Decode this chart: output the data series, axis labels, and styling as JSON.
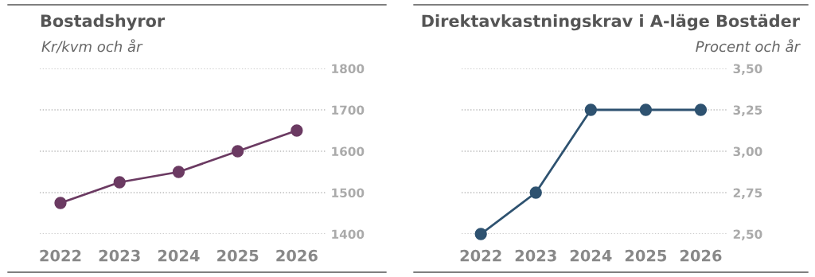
{
  "chart_data": [
    {
      "type": "line",
      "title": "Bostadshyror",
      "subtitle": "Kr/kvm och år",
      "categories": [
        "2022",
        "2023",
        "2024",
        "2025",
        "2026"
      ],
      "series": [
        {
          "color": "#6b3a62",
          "values": [
            1475,
            1525,
            1550,
            1600,
            1650
          ]
        }
      ],
      "ylim": [
        1400,
        1800
      ],
      "yticks": [
        1400,
        1500,
        1600,
        1700,
        1800
      ],
      "grid": "y",
      "marker": "circle",
      "line_style": "solid"
    },
    {
      "type": "line",
      "title": "Direktavkastningskrav i A-läge Bostäder",
      "subtitle": "Procent och år",
      "categories": [
        "2022",
        "2023",
        "2024",
        "2025",
        "2026"
      ],
      "series": [
        {
          "color": "#2e5270",
          "values": [
            2.5,
            2.75,
            3.25,
            3.25,
            3.25
          ]
        }
      ],
      "ylim": [
        2.5,
        3.5
      ],
      "yticks": [
        {
          "value": 2.5,
          "label": "2,50"
        },
        {
          "value": 2.75,
          "label": "2,75"
        },
        {
          "value": 3.0,
          "label": "3,00"
        },
        {
          "value": 3.25,
          "label": "3,25"
        },
        {
          "value": 3.5,
          "label": "3,50"
        }
      ],
      "grid": "y",
      "marker": "circle",
      "line_style": "solid"
    }
  ]
}
